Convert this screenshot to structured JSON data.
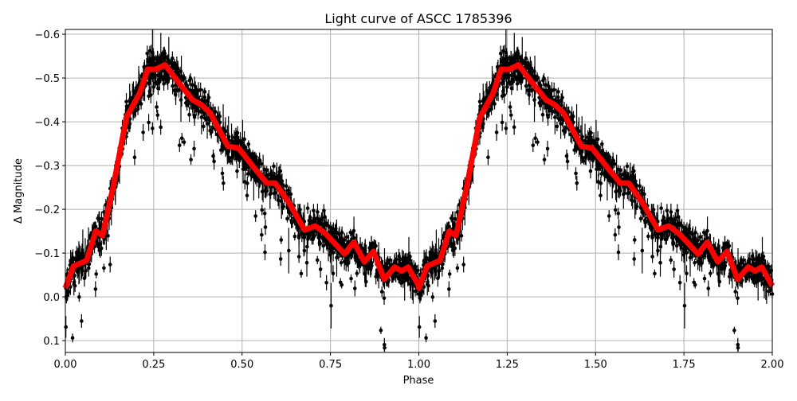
{
  "chart_data": {
    "type": "scatter",
    "title": "Light curve of ASCC 1785396",
    "xlabel": "Phase",
    "ylabel": "Δ Magnitude",
    "xlim": [
      0,
      2
    ],
    "ylim": [
      0.127,
      -0.611
    ],
    "y_inverted": true,
    "grid": true,
    "xticks": [
      "0.00",
      "0.25",
      "0.50",
      "0.75",
      "1.00",
      "1.25",
      "1.50",
      "1.75",
      "2.00"
    ],
    "xtick_values": [
      0,
      0.25,
      0.5,
      0.75,
      1,
      1.25,
      1.5,
      1.75,
      2
    ],
    "yticks": [
      "−0.6",
      "−0.5",
      "−0.4",
      "−0.3",
      "−0.2",
      "−0.1",
      "0.0",
      "0.1"
    ],
    "ytick_values": [
      -0.6,
      -0.5,
      -0.4,
      -0.3,
      -0.2,
      -0.1,
      0,
      0.1
    ],
    "fit_curve": {
      "color": "#ff0000",
      "period_repeated": true,
      "phase": [
        0,
        0.023,
        0.06,
        0.086,
        0.105,
        0.135,
        0.173,
        0.21,
        0.233,
        0.256,
        0.282,
        0.33,
        0.36,
        0.383,
        0.41,
        0.46,
        0.49,
        0.534,
        0.57,
        0.594,
        0.632,
        0.677,
        0.707,
        0.737,
        0.79,
        0.816,
        0.846,
        0.872,
        0.902,
        0.932,
        0.951,
        0.97,
        1.0
      ],
      "magnitude": [
        -0.02,
        -0.07,
        -0.083,
        -0.15,
        -0.14,
        -0.25,
        -0.41,
        -0.465,
        -0.52,
        -0.52,
        -0.53,
        -0.48,
        -0.45,
        -0.44,
        -0.42,
        -0.344,
        -0.34,
        -0.295,
        -0.26,
        -0.26,
        -0.216,
        -0.153,
        -0.162,
        -0.144,
        -0.098,
        -0.125,
        -0.08,
        -0.104,
        -0.04,
        -0.068,
        -0.059,
        -0.068,
        -0.025
      ]
    },
    "observations": {
      "color": "#000000",
      "marker": "dot with error bars"
    }
  }
}
